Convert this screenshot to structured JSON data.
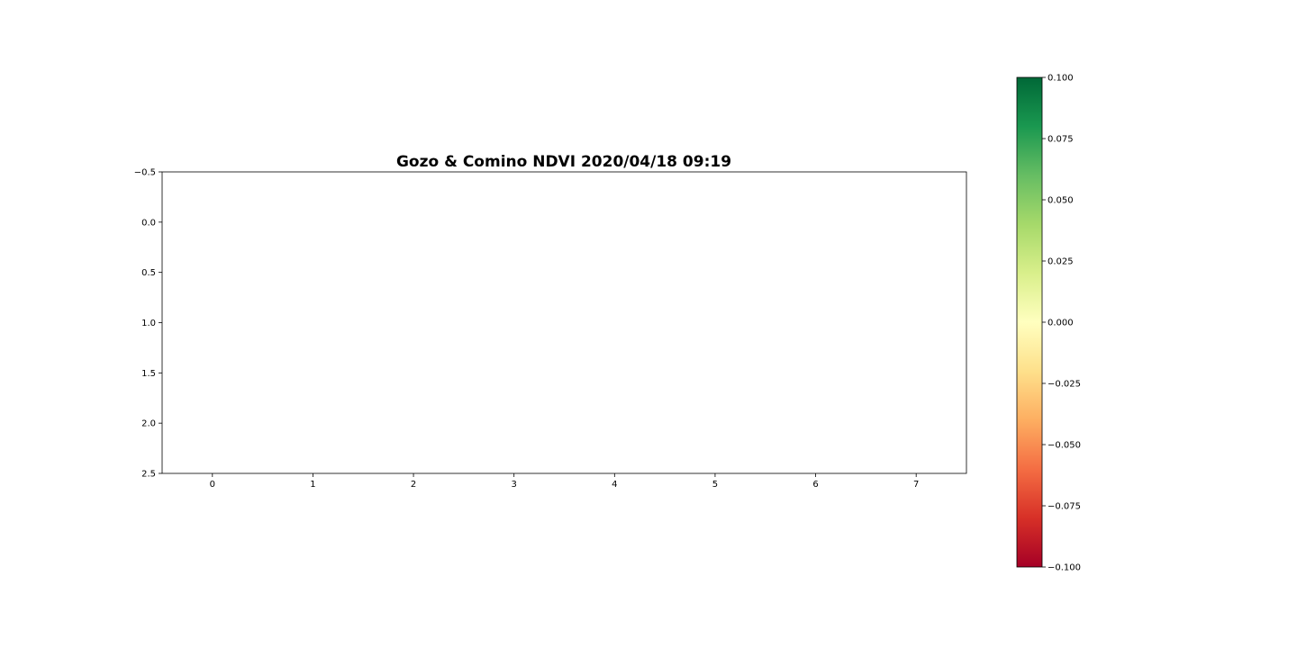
{
  "chart_data": {
    "type": "heatmap",
    "title": "Gozo & Comino NDVI 2020/04/18 09:19",
    "xlabel": "",
    "ylabel": "",
    "xlim": [
      -0.5,
      7.5
    ],
    "ylim": [
      2.5,
      -0.5
    ],
    "x_ticks": [
      "0",
      "1",
      "2",
      "3",
      "4",
      "5",
      "6",
      "7"
    ],
    "y_ticks": [
      "−0.5",
      "0.0",
      "0.5",
      "1.0",
      "1.5",
      "2.0",
      "2.5"
    ],
    "cells": [],
    "grid": false,
    "colorbar": {
      "colormap": "RdYlGn",
      "range": [
        -0.1,
        0.1
      ],
      "ticks": [
        "0.100",
        "0.075",
        "0.050",
        "0.025",
        "0.000",
        "−0.025",
        "−0.050",
        "−0.075",
        "−0.100"
      ],
      "colors": [
        "#a50026",
        "#d73027",
        "#f46d43",
        "#fdae61",
        "#fee08b",
        "#ffffbf",
        "#d9ef8b",
        "#a6d96a",
        "#66bd63",
        "#1a9850",
        "#006837"
      ]
    }
  }
}
